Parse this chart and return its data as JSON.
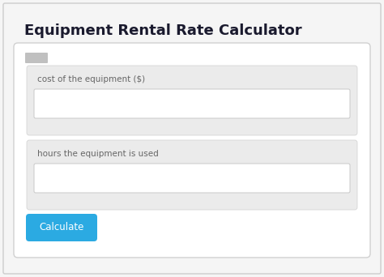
{
  "title": "Equipment Rental Rate Calculator",
  "title_fontsize": 13,
  "title_fontweight": "bold",
  "title_color": "#1a1a2e",
  "bg_color": "#f5f5f5",
  "card_bg": "#ffffff",
  "card_border": "#d0d0d0",
  "field_bg": "#ebebeb",
  "field_border": "#d0d0d0",
  "input_bg": "#ffffff",
  "input_border": "#c8c8c8",
  "label1": "cost of the equipment ($)",
  "label2": "hours the equipment is used",
  "label_color": "#666666",
  "label_fontsize": 7.5,
  "button_text": "Calculate",
  "button_color": "#2baae2",
  "button_text_color": "#ffffff",
  "button_fontsize": 8.5,
  "scroll_color": "#c0c0c0",
  "fig_width": 4.74,
  "fig_height": 3.42
}
